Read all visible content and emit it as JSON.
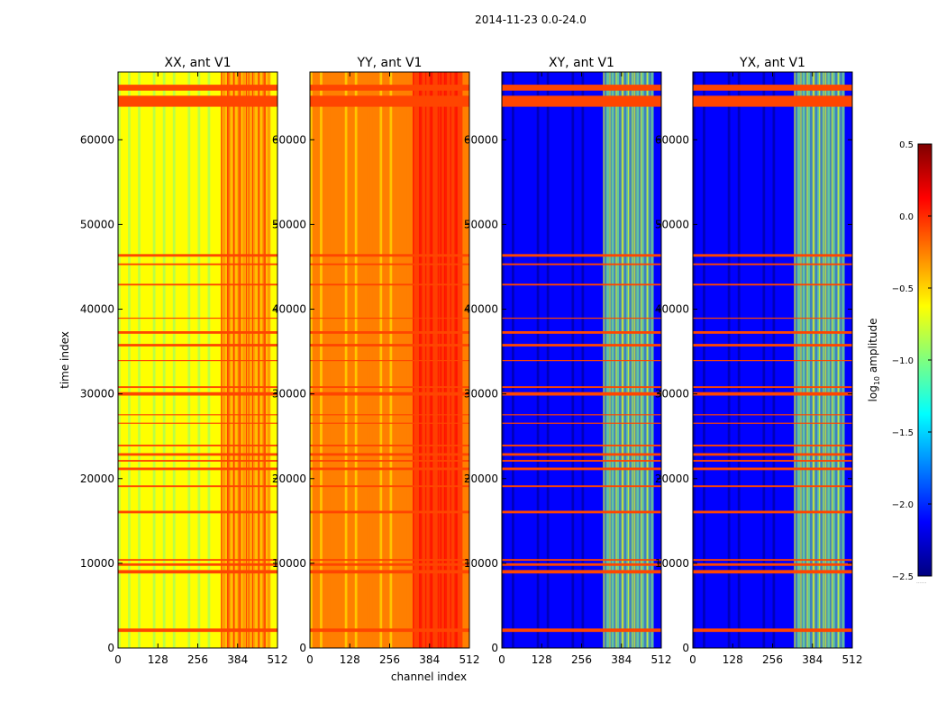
{
  "figure": {
    "suptitle": "2014-11-23 0.0-24.0",
    "ylabel": "time index",
    "xlabel": "channel index"
  },
  "colorbar": {
    "label": "log10 amplitude",
    "label_base": "log",
    "label_sub": "10",
    "label_rest": " amplitude",
    "range": [
      -2.5,
      0.5
    ],
    "ticks": [
      0.5,
      0.0,
      -0.5,
      -1.0,
      -1.5,
      -2.0,
      -2.5
    ],
    "tick_labels": [
      "0.5",
      "0.0",
      "−0.5",
      "−1.0",
      "−1.5",
      "−2.0",
      "−2.5"
    ],
    "colormap": [
      "#00007f",
      "#0000ff",
      "#007fff",
      "#00ffff",
      "#7fff7f",
      "#ffff00",
      "#ff7f00",
      "#ff0000",
      "#7f0000"
    ],
    "under_marker": "......"
  },
  "chart_data": [
    {
      "type": "heatmap",
      "title": "XX, ant V1",
      "xlim": [
        0,
        512
      ],
      "ylim": [
        0,
        68000
      ],
      "xticks": [
        0,
        128,
        256,
        384,
        512
      ],
      "yticks": [
        0,
        10000,
        20000,
        30000,
        40000,
        50000,
        60000
      ],
      "base_log_amplitude": -0.8,
      "band_channels": [
        330,
        490
      ],
      "band_log_amplitude": -0.1,
      "flagged_color": "#ff4500",
      "flagged_time_ranges": [
        [
          1900,
          2300
        ],
        [
          8800,
          9200
        ],
        [
          9700,
          10000
        ],
        [
          10300,
          10500
        ],
        [
          15900,
          16200
        ],
        [
          19000,
          19200
        ],
        [
          21000,
          21300
        ],
        [
          22000,
          22200
        ],
        [
          22700,
          23000
        ],
        [
          23800,
          24000
        ],
        [
          26500,
          26600
        ],
        [
          27500,
          27600
        ],
        [
          29800,
          30200
        ],
        [
          30700,
          30900
        ],
        [
          33900,
          34000
        ],
        [
          35600,
          35900
        ],
        [
          37100,
          37400
        ],
        [
          38900,
          39000
        ],
        [
          42800,
          43000
        ],
        [
          45200,
          45400
        ],
        [
          46200,
          46500
        ],
        [
          63900,
          65200
        ],
        [
          65800,
          66500
        ]
      ]
    },
    {
      "type": "heatmap",
      "title": "YY, ant V1",
      "xlim": [
        0,
        512
      ],
      "ylim": [
        0,
        68000
      ],
      "xticks": [
        0,
        128,
        256,
        384,
        512
      ],
      "yticks": [
        0,
        10000,
        20000,
        30000,
        40000,
        50000,
        60000
      ],
      "base_log_amplitude": -0.35,
      "band_channels": [
        330,
        490
      ],
      "band_log_amplitude": -0.05,
      "flagged_color": "#ff4500",
      "flagged_time_ranges": [
        [
          1900,
          2300
        ],
        [
          8800,
          9200
        ],
        [
          9700,
          10000
        ],
        [
          10300,
          10500
        ],
        [
          15900,
          16200
        ],
        [
          19000,
          19200
        ],
        [
          21000,
          21300
        ],
        [
          22000,
          22200
        ],
        [
          22700,
          23000
        ],
        [
          23800,
          24000
        ],
        [
          26500,
          26600
        ],
        [
          27500,
          27600
        ],
        [
          29800,
          30200
        ],
        [
          30700,
          30900
        ],
        [
          33900,
          34000
        ],
        [
          35600,
          35900
        ],
        [
          37100,
          37400
        ],
        [
          38900,
          39000
        ],
        [
          42800,
          43000
        ],
        [
          45200,
          45400
        ],
        [
          46200,
          46500
        ],
        [
          63900,
          65200
        ],
        [
          65800,
          66500
        ]
      ]
    },
    {
      "type": "heatmap",
      "title": "XY, ant V1",
      "xlim": [
        0,
        512
      ],
      "ylim": [
        0,
        68000
      ],
      "xticks": [
        0,
        128,
        256,
        384,
        512
      ],
      "yticks": [
        0,
        10000,
        20000,
        30000,
        40000,
        50000,
        60000
      ],
      "base_log_amplitude": -2.2,
      "band_channels": [
        325,
        485
      ],
      "band_log_amplitude": -0.9,
      "flagged_color": "#ff4500",
      "flagged_time_ranges": [
        [
          1900,
          2300
        ],
        [
          8800,
          9200
        ],
        [
          9700,
          10000
        ],
        [
          10300,
          10500
        ],
        [
          15900,
          16200
        ],
        [
          19000,
          19200
        ],
        [
          21000,
          21300
        ],
        [
          22000,
          22200
        ],
        [
          22700,
          23000
        ],
        [
          23800,
          24000
        ],
        [
          26500,
          26600
        ],
        [
          27500,
          27600
        ],
        [
          29800,
          30200
        ],
        [
          30700,
          30900
        ],
        [
          33900,
          34000
        ],
        [
          35600,
          35900
        ],
        [
          37100,
          37400
        ],
        [
          38900,
          39000
        ],
        [
          42800,
          43000
        ],
        [
          45200,
          45400
        ],
        [
          46200,
          46500
        ],
        [
          63900,
          65200
        ],
        [
          65800,
          66500
        ]
      ]
    },
    {
      "type": "heatmap",
      "title": "YX, ant V1",
      "xlim": [
        0,
        512
      ],
      "ylim": [
        0,
        68000
      ],
      "xticks": [
        0,
        128,
        256,
        384,
        512
      ],
      "yticks": [
        0,
        10000,
        20000,
        30000,
        40000,
        50000,
        60000
      ],
      "base_log_amplitude": -2.2,
      "band_channels": [
        325,
        485
      ],
      "band_log_amplitude": -0.9,
      "flagged_color": "#ff4500",
      "flagged_time_ranges": [
        [
          1900,
          2300
        ],
        [
          8800,
          9200
        ],
        [
          9700,
          10000
        ],
        [
          10300,
          10500
        ],
        [
          15900,
          16200
        ],
        [
          19000,
          19200
        ],
        [
          21000,
          21300
        ],
        [
          22000,
          22200
        ],
        [
          22700,
          23000
        ],
        [
          23800,
          24000
        ],
        [
          26500,
          26600
        ],
        [
          27500,
          27600
        ],
        [
          29800,
          30200
        ],
        [
          30700,
          30900
        ],
        [
          33900,
          34000
        ],
        [
          35600,
          35900
        ],
        [
          37100,
          37400
        ],
        [
          38900,
          39000
        ],
        [
          42800,
          43000
        ],
        [
          45200,
          45400
        ],
        [
          46200,
          46500
        ],
        [
          63900,
          65200
        ],
        [
          65800,
          66500
        ]
      ]
    }
  ]
}
